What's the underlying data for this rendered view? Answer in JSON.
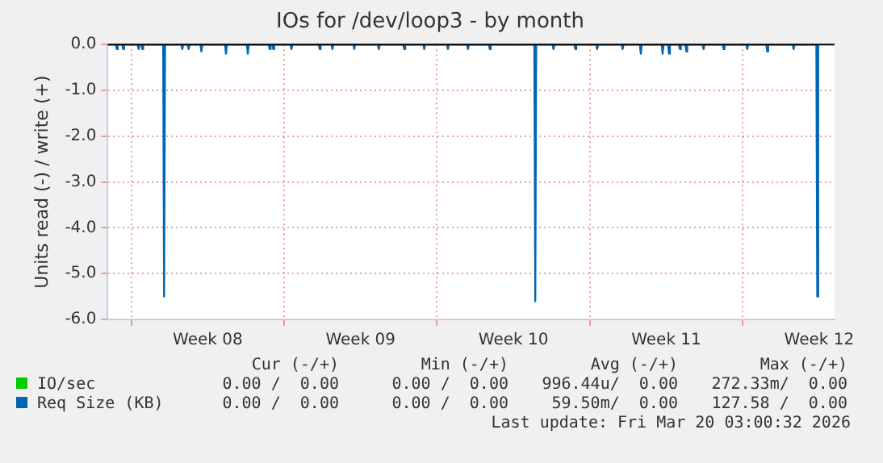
{
  "chart_data": {
    "type": "line",
    "title": "IOs for /dev/loop3 - by month",
    "ylabel": "Units read (-) / write (+)",
    "xlim": [
      "2026-02-14T22:00",
      "2026-03-20T05:00"
    ],
    "xticks": [
      {
        "value": "2026-02-16T00:00",
        "label": null
      },
      {
        "value": "2026-02-19T12:00",
        "label": "Week 08"
      },
      {
        "value": "2026-02-23T00:00",
        "label": null
      },
      {
        "value": "2026-02-26T12:00",
        "label": "Week 09"
      },
      {
        "value": "2026-03-02T00:00",
        "label": null
      },
      {
        "value": "2026-03-05T12:00",
        "label": "Week 10"
      },
      {
        "value": "2026-03-09T00:00",
        "label": null
      },
      {
        "value": "2026-03-12T12:00",
        "label": "Week 11"
      },
      {
        "value": "2026-03-16T00:00",
        "label": null
      },
      {
        "value": "2026-03-19T12:00",
        "label": "Week 12"
      }
    ],
    "ylim": [
      -6,
      0
    ],
    "yticks": [
      {
        "value": 0,
        "label": "0.0"
      },
      {
        "value": -1,
        "label": "-1.0"
      },
      {
        "value": -2,
        "label": "-2.0"
      },
      {
        "value": -3,
        "label": "-3.0"
      },
      {
        "value": -4,
        "label": "-4.0"
      },
      {
        "value": -5,
        "label": "-5.0"
      },
      {
        "value": -6,
        "label": "-6.0"
      }
    ],
    "grid": true,
    "legend": "bottom left",
    "marker": "none",
    "line_style": "solid",
    "ref_lines": [
      {
        "axis": "y",
        "value": 0,
        "color": "#000000"
      }
    ],
    "series": [
      {
        "name": "IO/sec",
        "color": "#00cc00"
      },
      {
        "name": "Req Size (KB)",
        "color": "#0066b3",
        "x": [
          "2026-02-14T22:00",
          "2026-02-15T07:00",
          "2026-02-15T08:00",
          "2026-02-15T09:00",
          "2026-02-15T14:00",
          "2026-02-15T15:00",
          "2026-02-15T16:00",
          "2026-02-16T07:00",
          "2026-02-16T08:00",
          "2026-02-16T09:00",
          "2026-02-16T11:00",
          "2026-02-16T12:00",
          "2026-02-16T13:00",
          "2026-02-17T11:00",
          "2026-02-17T12:00",
          "2026-02-17T13:00",
          "2026-02-18T07:00",
          "2026-02-18T08:00",
          "2026-02-18T09:00",
          "2026-02-18T14:00",
          "2026-02-18T15:00",
          "2026-02-18T16:00",
          "2026-02-19T04:00",
          "2026-02-19T05:00",
          "2026-02-19T06:00",
          "2026-02-20T07:00",
          "2026-02-20T08:00",
          "2026-02-20T09:00",
          "2026-02-21T07:00",
          "2026-02-21T08:00",
          "2026-02-21T09:00",
          "2026-02-22T07:00",
          "2026-02-22T08:00",
          "2026-02-22T09:00",
          "2026-02-22T11:00",
          "2026-02-22T12:00",
          "2026-02-22T13:00",
          "2026-02-23T07:00",
          "2026-02-23T08:00",
          "2026-02-23T09:00",
          "2026-02-24T14:00",
          "2026-02-24T15:00",
          "2026-02-24T16:00",
          "2026-02-25T04:00",
          "2026-02-25T05:00",
          "2026-02-25T06:00",
          "2026-02-26T04:00",
          "2026-02-26T05:00",
          "2026-02-26T06:00",
          "2026-02-27T07:00",
          "2026-02-27T08:00",
          "2026-02-27T09:00",
          "2026-02-28T11:00",
          "2026-02-28T12:00",
          "2026-02-28T13:00",
          "2026-03-01T09:00",
          "2026-03-01T10:00",
          "2026-03-01T11:00",
          "2026-03-02T11:00",
          "2026-03-02T12:00",
          "2026-03-02T13:00",
          "2026-03-03T09:00",
          "2026-03-03T10:00",
          "2026-03-03T11:00",
          "2026-03-04T09:00",
          "2026-03-04T10:00",
          "2026-03-04T11:00",
          "2026-03-06T11:00",
          "2026-03-06T12:00",
          "2026-03-06T13:00",
          "2026-03-07T07:00",
          "2026-03-07T08:00",
          "2026-03-07T09:00",
          "2026-03-08T07:00",
          "2026-03-08T08:00",
          "2026-03-08T09:00",
          "2026-03-09T07:00",
          "2026-03-09T08:00",
          "2026-03-09T09:00",
          "2026-03-10T11:00",
          "2026-03-10T12:00",
          "2026-03-10T13:00",
          "2026-03-11T07:00",
          "2026-03-11T08:00",
          "2026-03-11T09:00",
          "2026-03-12T07:00",
          "2026-03-12T08:00",
          "2026-03-12T09:00",
          "2026-03-12T14:00",
          "2026-03-12T15:00",
          "2026-03-12T16:00",
          "2026-03-13T02:00",
          "2026-03-13T03:00",
          "2026-03-13T04:00",
          "2026-03-13T09:00",
          "2026-03-13T10:00",
          "2026-03-13T11:00",
          "2026-03-14T04:00",
          "2026-03-14T05:00",
          "2026-03-14T06:00",
          "2026-03-15T02:00",
          "2026-03-15T03:00",
          "2026-03-15T04:00",
          "2026-03-16T04:00",
          "2026-03-16T05:00",
          "2026-03-16T06:00",
          "2026-03-17T02:00",
          "2026-03-17T03:00",
          "2026-03-17T04:00",
          "2026-03-18T07:00",
          "2026-03-18T08:00",
          "2026-03-18T09:00",
          "2026-03-19T09:00",
          "2026-03-19T10:00",
          "2026-03-19T11:00"
        ],
        "values": [
          0,
          0,
          -0.1,
          0,
          0,
          -0.1,
          0,
          0,
          -0.1,
          0,
          0,
          -0.1,
          0,
          0,
          -5.5,
          0,
          0,
          -0.1,
          0,
          0,
          -0.1,
          0,
          0,
          -0.15,
          0,
          0,
          -0.2,
          0,
          0,
          -0.2,
          0,
          0,
          -0.1,
          0,
          0,
          -0.1,
          0,
          0,
          -0.1,
          0,
          0,
          -0.1,
          0,
          0,
          -0.1,
          0,
          0,
          -0.1,
          0,
          0,
          -0.1,
          0,
          0,
          -0.1,
          0,
          0,
          -0.1,
          0,
          0,
          -0.1,
          0,
          0,
          -0.1,
          0,
          0,
          -0.1,
          0,
          0,
          -5.6,
          0,
          0,
          -0.1,
          0,
          0,
          -0.1,
          0,
          0,
          -0.1,
          0,
          0,
          -0.1,
          0,
          0,
          -0.2,
          0,
          0,
          -0.2,
          0,
          0,
          -0.2,
          0,
          0,
          -0.1,
          0,
          0,
          -0.15,
          0,
          0,
          -0.1,
          0,
          0,
          -0.1,
          0,
          0,
          -0.1,
          0,
          0,
          -0.15,
          0,
          0,
          -0.1,
          0,
          0,
          -5.5,
          0
        ]
      }
    ],
    "annotations": [
      "Cur (-/+)",
      "Min (-/+)",
      "Avg (-/+)",
      "Max (-/+)",
      "0.00 /  0.00",
      "0.00 /  0.00",
      "996.44u/  0.00",
      "272.33m/  0.00",
      "0.00 /  0.00",
      "0.00 /  0.00",
      "59.50m/  0.00",
      "127.58 /  0.00",
      "Last update: Fri Mar 20 03:00:32 2026"
    ]
  }
}
